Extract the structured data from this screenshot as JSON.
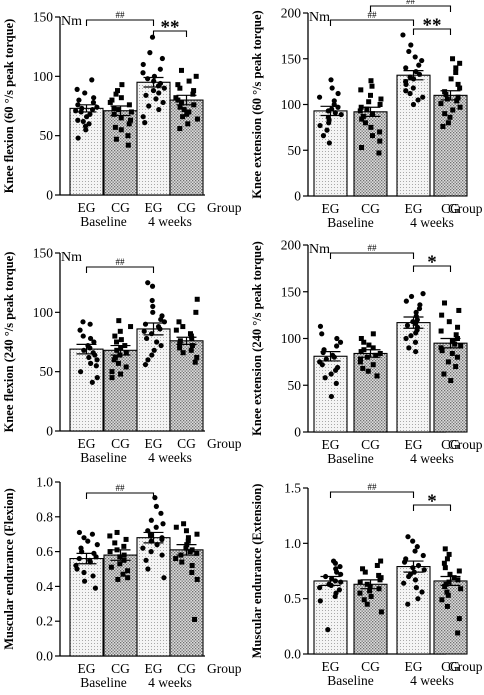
{
  "figure": {
    "time_labels": [
      "Baseline",
      "4 weeks"
    ],
    "group_label": "Group",
    "legend": [
      {
        "name": "EG",
        "color": "#f0f0f0",
        "pattern": "light-dots"
      },
      {
        "name": "CG",
        "color": "#c8c8c8",
        "pattern": "dark-dots"
      }
    ]
  },
  "chart_data": [
    {
      "type": "bar",
      "ylabel": "Knee flexion (60 °/s peak torque)",
      "unit": "Nm",
      "ylim": [
        0,
        150
      ],
      "yticks": [
        0,
        50,
        100,
        150
      ],
      "yticklabels": [
        "0",
        "50",
        "100",
        "150"
      ],
      "categories": [
        "EG",
        "CG",
        "EG",
        "CG"
      ],
      "values": [
        73,
        71,
        95,
        80
      ],
      "errors": [
        3,
        4,
        4,
        4
      ],
      "markers": [
        "circle",
        "square",
        "circle",
        "square"
      ],
      "points": [
        [
          97,
          89,
          86,
          82,
          80,
          78,
          76,
          74,
          73,
          72,
          71,
          70,
          68,
          66,
          63,
          62,
          60,
          58,
          55,
          48
        ],
        [
          93,
          88,
          85,
          82,
          80,
          78,
          76,
          73,
          72,
          70,
          68,
          65,
          63,
          60,
          57,
          55,
          50,
          47,
          42
        ],
        [
          133,
          120,
          115,
          110,
          106,
          103,
          100,
          98,
          96,
          94,
          92,
          90,
          88,
          86,
          84,
          81,
          78,
          75,
          72,
          66,
          61
        ],
        [
          105,
          100,
          96,
          93,
          90,
          88,
          85,
          82,
          80,
          78,
          76,
          74,
          72,
          70,
          68,
          66,
          64,
          60,
          56
        ]
      ],
      "annotations": [
        {
          "text": "##",
          "from": 0,
          "to": 2
        },
        {
          "text": "**",
          "from": 2,
          "to": 3
        }
      ]
    },
    {
      "type": "bar",
      "ylabel": "Knee extension (60 °/s peak torque)",
      "unit": "Nm",
      "ylim": [
        0,
        200
      ],
      "yticks": [
        0,
        50,
        100,
        150,
        200
      ],
      "yticklabels": [
        "0",
        "50",
        "100",
        "150",
        "200"
      ],
      "categories": [
        "EG",
        "CG",
        "EG",
        "CG"
      ],
      "values": [
        93,
        92,
        132,
        110
      ],
      "errors": [
        5,
        5,
        5,
        5
      ],
      "markers": [
        "circle",
        "square",
        "circle",
        "square"
      ],
      "points": [
        [
          127,
          118,
          112,
          108,
          104,
          100,
          97,
          95,
          93,
          91,
          89,
          86,
          83,
          80,
          77,
          72,
          66,
          58
        ],
        [
          126,
          120,
          116,
          110,
          106,
          103,
          100,
          97,
          95,
          93,
          90,
          87,
          84,
          80,
          75,
          70,
          66,
          60,
          53,
          47
        ],
        [
          176,
          165,
          158,
          152,
          148,
          143,
          140,
          136,
          133,
          130,
          128,
          125,
          122,
          118,
          115,
          112,
          108,
          105,
          100
        ],
        [
          150,
          145,
          140,
          135,
          128,
          122,
          118,
          114,
          111,
          108,
          106,
          104,
          101,
          97,
          94,
          90,
          86,
          80,
          76
        ]
      ],
      "annotations": [
        {
          "text": "##",
          "from": 0,
          "to": 2
        },
        {
          "text": "##",
          "from": 1,
          "to": 3
        },
        {
          "text": "**",
          "from": 2,
          "to": 3
        }
      ]
    },
    {
      "type": "bar",
      "ylabel": "Knee flexion (240 °/s peak torque)",
      "unit": "Nm",
      "ylim": [
        0,
        150
      ],
      "yticks": [
        0,
        50,
        100,
        150
      ],
      "yticklabels": [
        "0",
        "50",
        "100",
        "150"
      ],
      "categories": [
        "EG",
        "CG",
        "EG",
        "CG"
      ],
      "values": [
        69,
        68,
        86,
        76
      ],
      "errors": [
        4,
        4,
        5,
        3
      ],
      "markers": [
        "circle",
        "square",
        "circle",
        "square"
      ],
      "points": [
        [
          92,
          90,
          85,
          80,
          78,
          75,
          72,
          70,
          68,
          66,
          64,
          62,
          60,
          57,
          55,
          50,
          45,
          41
        ],
        [
          93,
          88,
          84,
          80,
          77,
          75,
          72,
          70,
          68,
          66,
          64,
          62,
          60,
          57,
          54,
          50,
          48,
          45
        ],
        [
          125,
          122,
          110,
          105,
          100,
          97,
          94,
          92,
          90,
          88,
          86,
          84,
          82,
          78,
          75,
          72,
          68,
          64,
          60,
          56
        ],
        [
          111,
          100,
          92,
          88,
          85,
          82,
          80,
          78,
          76,
          74,
          72,
          70,
          68,
          66,
          62,
          58
        ]
      ],
      "annotations": [
        {
          "text": "##",
          "from": 0,
          "to": 2
        }
      ]
    },
    {
      "type": "bar",
      "ylabel": "Knee extension (240 °/s peak torque)",
      "unit": "Nm",
      "ylim": [
        0,
        200
      ],
      "yticks": [
        0,
        50,
        100,
        150,
        200
      ],
      "yticklabels": [
        "0",
        "50",
        "100",
        "150",
        "200"
      ],
      "categories": [
        "EG",
        "CG",
        "EG",
        "CG"
      ],
      "values": [
        81,
        84,
        117,
        95
      ],
      "errors": [
        5,
        4,
        6,
        5
      ],
      "markers": [
        "circle",
        "square",
        "circle",
        "square"
      ],
      "points": [
        [
          113,
          105,
          100,
          96,
          92,
          88,
          85,
          82,
          80,
          78,
          75,
          72,
          69,
          66,
          62,
          58,
          52,
          38
        ],
        [
          105,
          100,
          96,
          93,
          90,
          88,
          86,
          84,
          82,
          80,
          78,
          75,
          72,
          68,
          65,
          60
        ],
        [
          148,
          145,
          140,
          136,
          132,
          128,
          124,
          120,
          118,
          116,
          114,
          112,
          109,
          106,
          103,
          100,
          96,
          90,
          86
        ],
        [
          138,
          130,
          125,
          118,
          112,
          108,
          104,
          100,
          97,
          94,
          92,
          90,
          87,
          84,
          80,
          75,
          70,
          62,
          55
        ]
      ],
      "annotations": [
        {
          "text": "##",
          "from": 0,
          "to": 2
        },
        {
          "text": "*",
          "from": 2,
          "to": 3
        }
      ]
    },
    {
      "type": "bar",
      "ylabel": "Muscular endurance (Flexion)",
      "unit": "",
      "ylim": [
        0,
        1.0
      ],
      "yticks": [
        0,
        0.2,
        0.4,
        0.6,
        0.8,
        1.0
      ],
      "yticklabels": [
        "0.0",
        "0.2",
        "0.4",
        "0.6",
        "0.8",
        "1.0"
      ],
      "categories": [
        "EG",
        "CG",
        "EG",
        "CG"
      ],
      "values": [
        0.56,
        0.58,
        0.68,
        0.61
      ],
      "errors": [
        0.03,
        0.03,
        0.03,
        0.03
      ],
      "markers": [
        "circle",
        "square",
        "circle",
        "square"
      ],
      "points": [
        [
          0.71,
          0.7,
          0.68,
          0.66,
          0.64,
          0.62,
          0.6,
          0.59,
          0.57,
          0.56,
          0.55,
          0.54,
          0.52,
          0.5,
          0.48,
          0.46,
          0.43,
          0.39
        ],
        [
          0.71,
          0.69,
          0.67,
          0.65,
          0.63,
          0.61,
          0.6,
          0.58,
          0.57,
          0.55,
          0.53,
          0.51,
          0.49,
          0.47,
          0.45,
          0.44
        ],
        [
          0.91,
          0.86,
          0.82,
          0.78,
          0.76,
          0.74,
          0.72,
          0.7,
          0.69,
          0.68,
          0.67,
          0.66,
          0.64,
          0.62,
          0.6,
          0.58,
          0.55,
          0.5,
          0.45
        ],
        [
          0.76,
          0.74,
          0.72,
          0.7,
          0.68,
          0.66,
          0.64,
          0.62,
          0.61,
          0.6,
          0.59,
          0.58,
          0.56,
          0.54,
          0.52,
          0.48,
          0.44,
          0.21
        ]
      ],
      "annotations": [
        {
          "text": "##",
          "from": 0,
          "to": 2
        }
      ]
    },
    {
      "type": "bar",
      "ylabel": "Muscular endurance (Extension)",
      "unit": "",
      "ylim": [
        0,
        1.5
      ],
      "yticks": [
        0,
        0.5,
        1.0,
        1.5
      ],
      "yticklabels": [
        "0.0",
        "0.5",
        "1.0",
        "1.5"
      ],
      "categories": [
        "EG",
        "CG",
        "EG",
        "CG"
      ],
      "values": [
        0.66,
        0.63,
        0.79,
        0.66
      ],
      "errors": [
        0.04,
        0.04,
        0.05,
        0.04
      ],
      "markers": [
        "circle",
        "square",
        "circle",
        "square"
      ],
      "points": [
        [
          0.84,
          0.82,
          0.79,
          0.77,
          0.74,
          0.72,
          0.7,
          0.68,
          0.66,
          0.65,
          0.63,
          0.62,
          0.6,
          0.58,
          0.55,
          0.52,
          0.48,
          0.22
        ],
        [
          0.84,
          0.8,
          0.77,
          0.74,
          0.71,
          0.69,
          0.67,
          0.65,
          0.63,
          0.61,
          0.59,
          0.57,
          0.55,
          0.52,
          0.49,
          0.45,
          0.38
        ],
        [
          1.06,
          1.02,
          0.97,
          0.93,
          0.89,
          0.86,
          0.83,
          0.8,
          0.78,
          0.76,
          0.74,
          0.72,
          0.7,
          0.67,
          0.64,
          0.6,
          0.56,
          0.5,
          0.45
        ],
        [
          0.95,
          0.9,
          0.86,
          0.82,
          0.78,
          0.75,
          0.72,
          0.69,
          0.67,
          0.65,
          0.63,
          0.61,
          0.59,
          0.56,
          0.53,
          0.49,
          0.43,
          0.32,
          0.19
        ]
      ],
      "annotations": [
        {
          "text": "##",
          "from": 0,
          "to": 2
        },
        {
          "text": "*",
          "from": 2,
          "to": 3
        }
      ]
    }
  ]
}
